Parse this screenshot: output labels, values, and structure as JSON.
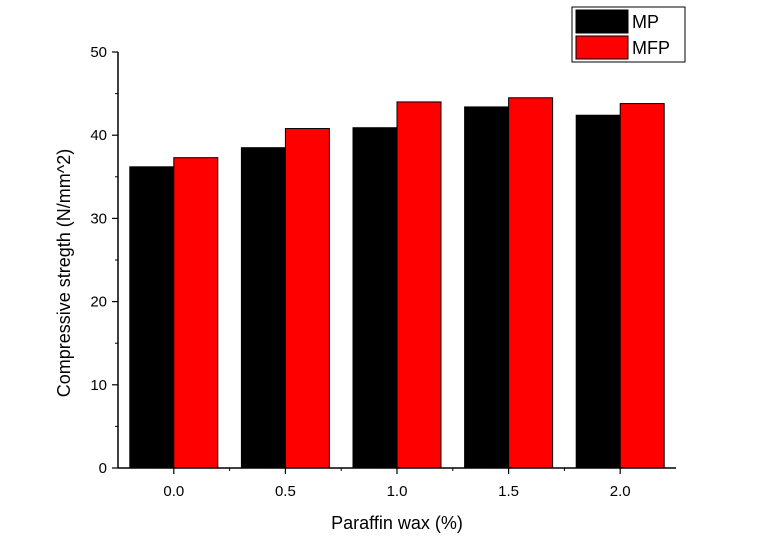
{
  "chart_data": {
    "type": "bar",
    "title": "",
    "xlabel": "Paraffin wax (%)",
    "ylabel": "Compressive stregth (N/mm^2)",
    "categories": [
      "0.0",
      "0.5",
      "1.0",
      "1.5",
      "2.0"
    ],
    "ylim": [
      0,
      50
    ],
    "yticks": [
      "0",
      "10",
      "20",
      "30",
      "40",
      "50"
    ],
    "grid": false,
    "legend_position": "top-right, outside plot",
    "series": [
      {
        "name": "MP",
        "color": "#000000",
        "values": [
          36.2,
          38.5,
          40.9,
          43.4,
          42.4
        ]
      },
      {
        "name": "MFP",
        "color": "#ff0000",
        "values": [
          37.3,
          40.8,
          44.0,
          44.5,
          43.8
        ]
      }
    ]
  }
}
